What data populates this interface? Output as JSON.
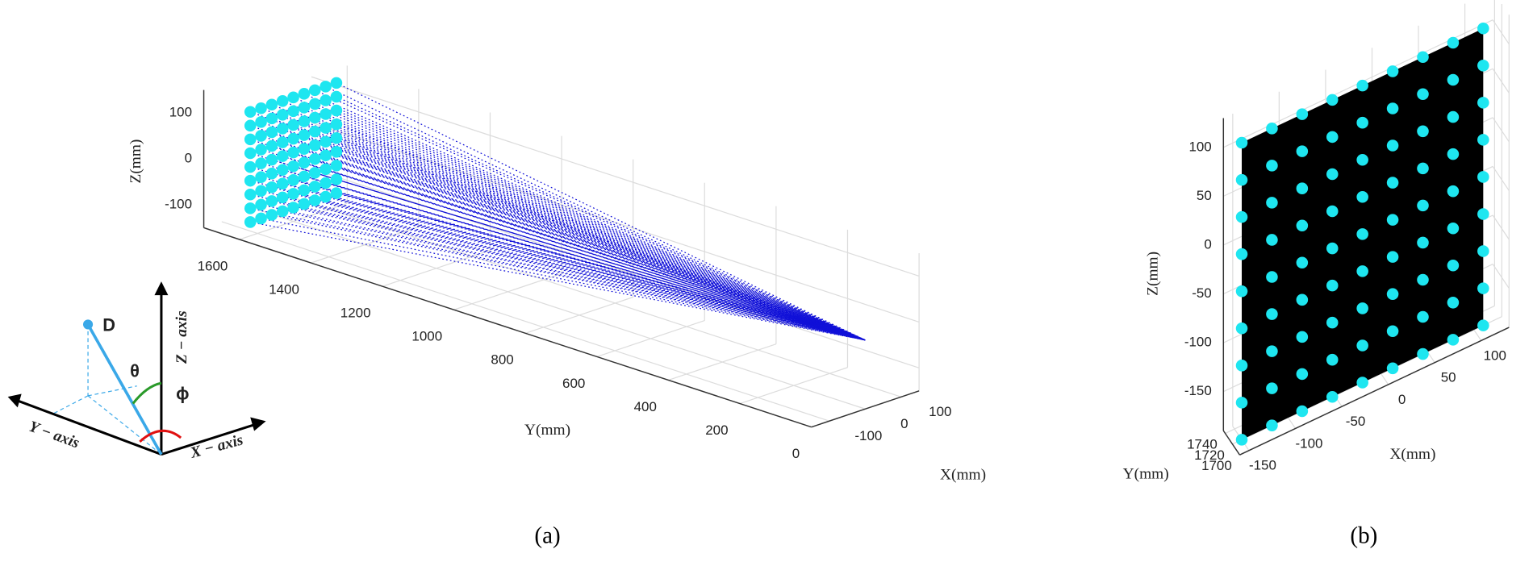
{
  "chart_data": [
    {
      "type": "scatter3d",
      "caption": "(a)",
      "x_label": "X(mm)",
      "y_label": "Y(mm)",
      "z_label": "Z(mm)",
      "xlim": [
        -150,
        150
      ],
      "ylim": [
        0,
        1700
      ],
      "zlim": [
        -150,
        150
      ],
      "xticks": [
        -100,
        0,
        100
      ],
      "yticks": [
        0,
        200,
        400,
        600,
        800,
        1000,
        1200,
        1400,
        1600
      ],
      "zticks": [
        -100,
        0,
        100
      ],
      "grid": true,
      "points": {
        "x": [
          -120,
          -90,
          -60,
          -30,
          0,
          30,
          60,
          90,
          120
        ],
        "z": [
          -120,
          -90,
          -60,
          -30,
          0,
          30,
          60,
          90,
          120
        ],
        "y": 1600,
        "color": "#1ee6f0"
      },
      "rays": {
        "focus": [
          0,
          0,
          0
        ],
        "color": "#1010d8"
      }
    },
    {
      "type": "scatter3d",
      "caption": "(b)",
      "x_label": "X(mm)",
      "y_label": "Y(mm)",
      "z_label": "Z(mm)",
      "xlim": [
        -160,
        130
      ],
      "ylim": [
        1700,
        1745
      ],
      "zlim": [
        -190,
        130
      ],
      "xticks": [
        -150,
        -100,
        -50,
        0,
        50,
        100
      ],
      "yticks": [
        1700,
        1720,
        1740
      ],
      "zticks": [
        -150,
        -100,
        -50,
        0,
        50,
        100
      ],
      "grid": true,
      "points": {
        "x": [
          -150,
          -117.5,
          -85,
          -52.5,
          -20,
          12.5,
          45,
          77.5,
          110
        ],
        "z": [
          -190,
          -152,
          -114,
          -76,
          -38,
          0,
          38,
          76,
          114
        ],
        "y": 1720,
        "color": "#1ee6f0"
      },
      "plane": {
        "color": "#000000"
      }
    }
  ],
  "inset": {
    "point": "D",
    "theta": "θ",
    "phi": "ϕ",
    "z_axis": "Z − axis",
    "y_axis": "Y − axis",
    "x_axis": "X − axis"
  }
}
